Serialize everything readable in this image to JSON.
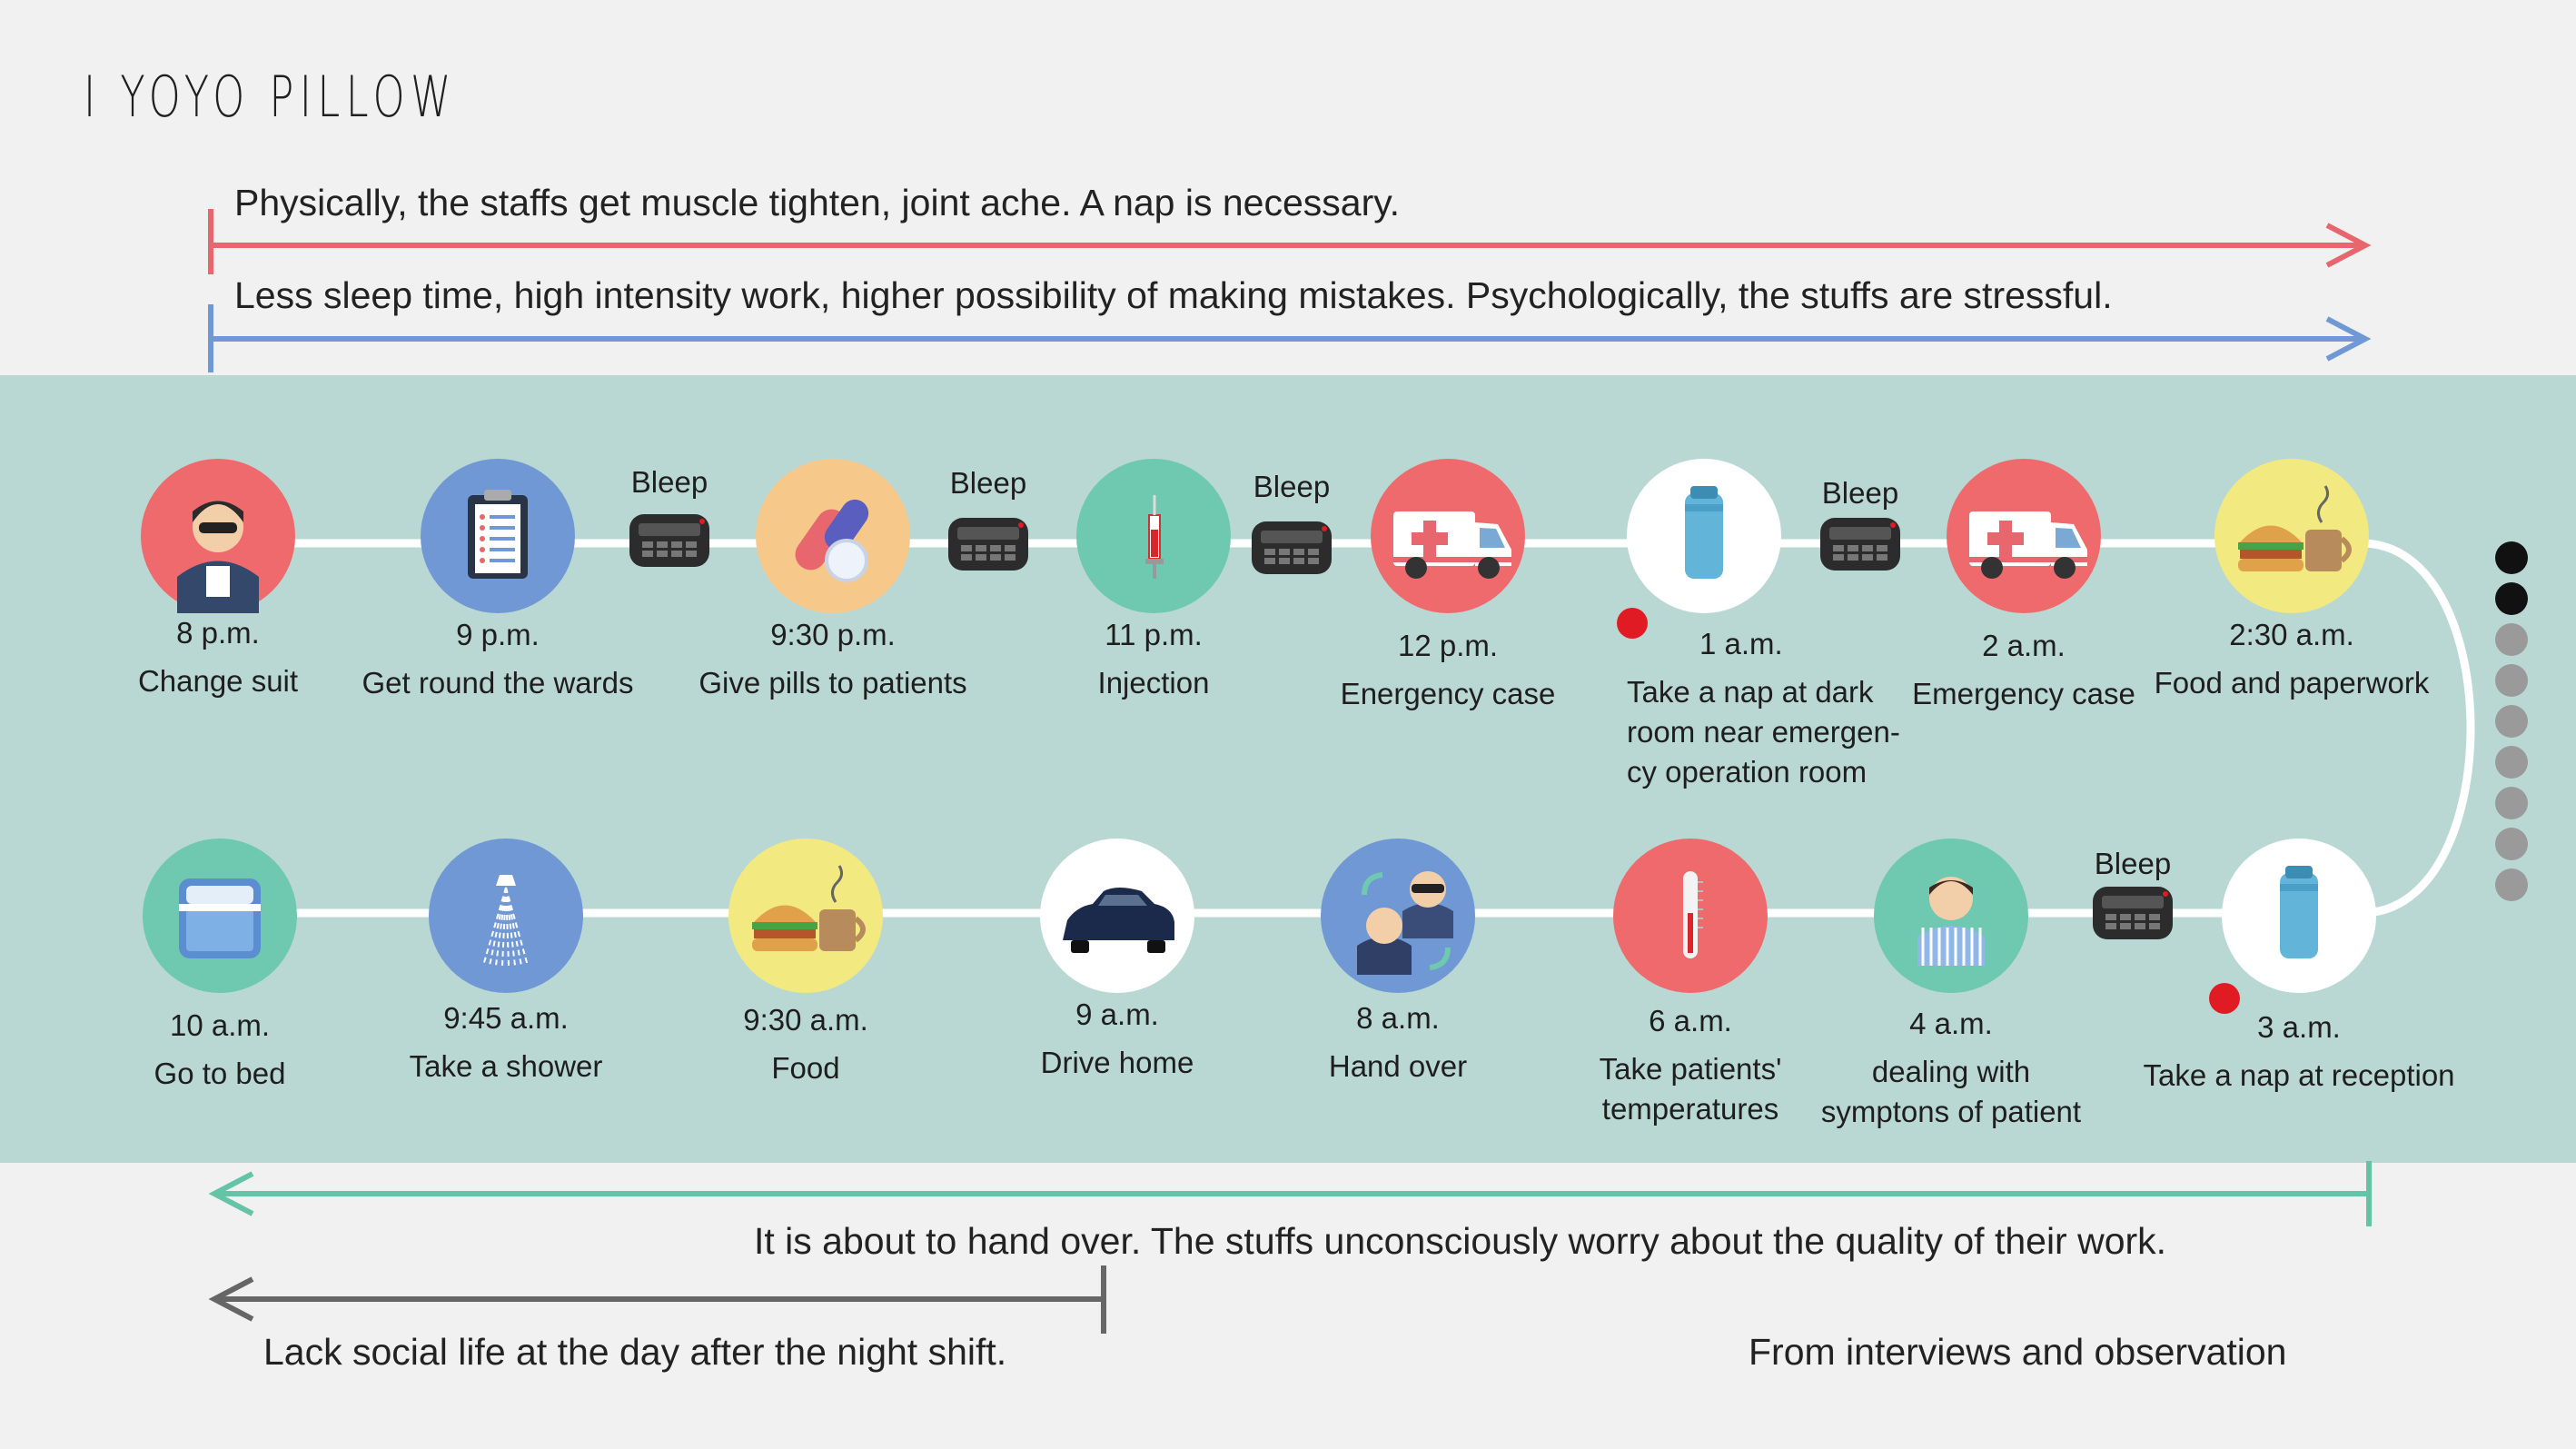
{
  "title": "I YOYO PILLOW",
  "notes": {
    "physical": "Physically, the staffs get muscle tighten, joint ache. A nap is necessary.",
    "psychological": "Less sleep time, high intensity work, higher possibility of making mistakes. Psychologically, the stuffs are stressful.",
    "handover": "It is about to hand over. The stuffs unconsciously worry about the quality of their work.",
    "social": "Lack social life at the day after the night shift."
  },
  "colors": {
    "red_arrow": "#e8676e",
    "blue_arrow": "#6f98d4",
    "teal_arrow": "#66c4a6",
    "gray_arrow": "#666666",
    "band": "#bad8d3"
  },
  "bleep_label": "Bleep",
  "top_row": [
    {
      "time": "8 p.m.",
      "desc": "Change suit",
      "icon": "nurse-icon",
      "color": "#ee6a6d"
    },
    {
      "time": "9 p.m.",
      "desc": "Get round the wards",
      "icon": "clipboard-icon",
      "color": "#6f98d4"
    },
    {
      "time": "9:30 p.m.",
      "desc": "Give pills to patients",
      "icon": "pills-icon",
      "color": "#f6c98b"
    },
    {
      "time": "11 p.m.",
      "desc": "Injection",
      "icon": "syringe-icon",
      "color": "#6ec9b0"
    },
    {
      "time": "12 p.m.",
      "desc": "Energency case",
      "icon": "ambulance-icon",
      "color": "#ee6a6d"
    },
    {
      "time": "1 a.m.",
      "desc": "Take a nap at dark\nroom near emergen-\ncy operation room",
      "icon": "pillow-icon",
      "color": "#ffffff"
    },
    {
      "time": "2 a.m.",
      "desc": "Emergency case",
      "icon": "ambulance-icon",
      "color": "#ee6a6d"
    },
    {
      "time": "2:30 a.m.",
      "desc": "Food and paperwork",
      "icon": "food-icon",
      "color": "#f2ea80"
    }
  ],
  "bottom_row": [
    {
      "time": "10 a.m.",
      "desc": "Go to bed",
      "icon": "bed-icon",
      "color": "#6ec9b0"
    },
    {
      "time": "9:45 a.m.",
      "desc": "Take a shower",
      "icon": "shower-icon",
      "color": "#6f98d4"
    },
    {
      "time": "9:30 a.m.",
      "desc": "Food",
      "icon": "food-icon",
      "color": "#f2ea80"
    },
    {
      "time": "9 a.m.",
      "desc": "Drive home",
      "icon": "car-icon",
      "color": "#ffffff"
    },
    {
      "time": "8 a.m.",
      "desc": "Hand over",
      "icon": "handover-icon",
      "color": "#6f98d4"
    },
    {
      "time": "6 a.m.",
      "desc": "Take patients'\ntemperatures",
      "icon": "thermometer-icon",
      "color": "#ee6a6d"
    },
    {
      "time": "4 a.m.",
      "desc": "dealing with\nsymptons of patient",
      "icon": "patient-icon",
      "color": "#6ec9b0"
    },
    {
      "time": "3 a.m.",
      "desc": "Take a nap at reception",
      "icon": "pillow-icon",
      "color": "#ffffff"
    }
  ],
  "source": "From interviews  and observation"
}
